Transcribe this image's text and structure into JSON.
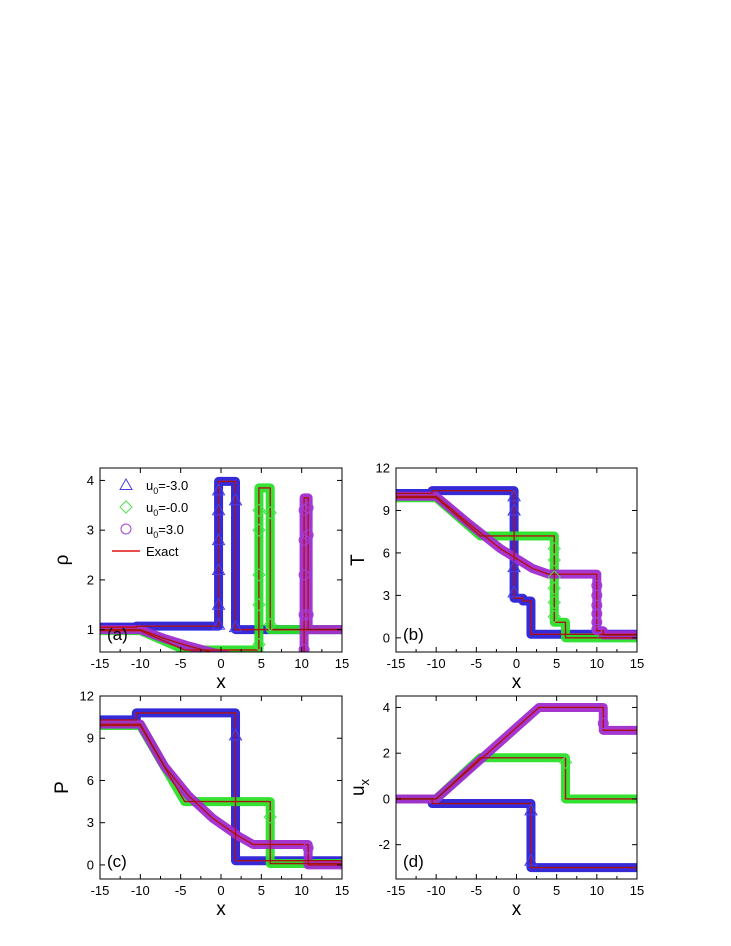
{
  "colors": {
    "u0_neg3": "#2a1fd6",
    "u0_zero": "#28e028",
    "u0_pos3": "#a12bd0",
    "exact": "#e01010",
    "marker_neg3": "#4a3fe0",
    "marker_zero": "#4fe04f",
    "marker_pos3": "#a040d8"
  },
  "legend": {
    "entries": [
      {
        "key": "u0_neg3",
        "label_main": "u",
        "label_sub": "0",
        "label_rest": "=-3.0",
        "marker": "triangle"
      },
      {
        "key": "u0_zero",
        "label_main": "u",
        "label_sub": "0",
        "label_rest": "=-0.0",
        "marker": "diamond"
      },
      {
        "key": "u0_pos3",
        "label_main": "u",
        "label_sub": "0",
        "label_rest": "=3.0",
        "marker": "circle"
      },
      {
        "key": "exact",
        "label_main": "Exact",
        "label_sub": "",
        "label_rest": "",
        "marker": "line"
      }
    ]
  },
  "chart_data": [
    {
      "type": "line",
      "panel_label": "(a)",
      "xlabel": "x",
      "ylabel": "ρ",
      "ylabel_sub": "",
      "xlim": [
        -15,
        15
      ],
      "ylim": [
        0.55,
        4.25
      ],
      "xticks": [
        -15,
        -10,
        -5,
        0,
        5,
        10,
        15
      ],
      "yticks": [
        1,
        2,
        3,
        4
      ],
      "show_legend": true,
      "series": [
        {
          "key": "u0_neg3",
          "x": [
            -15,
            -10.5,
            -10.5,
            -0.3,
            -0.3,
            1.8,
            1.8,
            15
          ],
          "y": [
            1.05,
            1.05,
            1.07,
            1.07,
            3.98,
            3.98,
            1.0,
            1.0
          ]
        },
        {
          "key": "u0_zero",
          "x": [
            -15,
            -10,
            -4.5,
            0,
            4.7,
            4.7,
            6.1,
            6.1,
            15
          ],
          "y": [
            0.98,
            0.98,
            0.59,
            0.59,
            0.59,
            3.85,
            3.85,
            1.0,
            1.0
          ]
        },
        {
          "key": "u0_pos3",
          "x": [
            -15,
            -10,
            -7,
            -4,
            -1,
            2,
            4,
            8.5,
            10.3,
            10.3,
            10.8,
            10.8,
            15
          ],
          "y": [
            1.0,
            1.0,
            0.82,
            0.67,
            0.54,
            0.44,
            0.38,
            0.32,
            0.32,
            3.65,
            3.65,
            1.0,
            1.0
          ]
        }
      ],
      "jump_markers": [
        {
          "key": "u0_neg3",
          "x": -0.3,
          "y": [
            1.1,
            1.5,
            2.2,
            2.8,
            3.4,
            3.8
          ]
        },
        {
          "key": "u0_neg3",
          "x": 1.8,
          "y": [
            1.05,
            3.6
          ]
        },
        {
          "key": "u0_zero",
          "x": 4.7,
          "y": [
            0.7,
            1.5,
            2.1,
            3.0,
            3.4
          ]
        },
        {
          "key": "u0_zero",
          "x": 6.1,
          "y": [
            1.1,
            3.35
          ]
        },
        {
          "key": "u0_pos3",
          "x": 10.3,
          "y": [
            0.35,
            0.6,
            1.3,
            2.1,
            2.8,
            3.4
          ]
        },
        {
          "key": "u0_pos3",
          "x": 10.8,
          "y": [
            1.3,
            2.9,
            3.45
          ]
        }
      ]
    },
    {
      "type": "line",
      "panel_label": "(b)",
      "xlabel": "x",
      "ylabel": "T",
      "ylabel_sub": "",
      "xlim": [
        -15,
        15
      ],
      "ylim": [
        -1,
        12
      ],
      "xticks": [
        -15,
        -10,
        -5,
        0,
        5,
        10,
        15
      ],
      "yticks": [
        0,
        3,
        6,
        9,
        12
      ],
      "show_legend": false,
      "series": [
        {
          "key": "u0_neg3",
          "x": [
            -15,
            -10.5,
            -10.5,
            -0.3,
            -0.3,
            0.8,
            0.8,
            1.8,
            1.8,
            15
          ],
          "y": [
            10.2,
            10.2,
            10.4,
            10.4,
            2.8,
            2.8,
            2.6,
            2.6,
            0.25,
            0.25
          ]
        },
        {
          "key": "u0_zero",
          "x": [
            -15,
            -10,
            -4.5,
            4.7,
            4.7,
            6.1,
            6.1,
            15
          ],
          "y": [
            9.9,
            9.9,
            7.2,
            7.2,
            1.1,
            1.1,
            0.0,
            0.0
          ]
        },
        {
          "key": "u0_pos3",
          "x": [
            -15,
            -10,
            -6,
            -2,
            2,
            4,
            10.0,
            10.0,
            10.8,
            10.8,
            15
          ],
          "y": [
            10.0,
            10.0,
            8.1,
            6.3,
            4.9,
            4.5,
            4.5,
            0.5,
            0.5,
            0.2,
            0.2
          ]
        }
      ],
      "jump_markers": [
        {
          "key": "u0_neg3",
          "x": -0.3,
          "y": [
            3.2,
            5.0,
            9.0,
            10.0
          ]
        },
        {
          "key": "u0_zero",
          "x": 4.7,
          "y": [
            1.5,
            2.5,
            3.5,
            4.3,
            5.5,
            6.3
          ]
        },
        {
          "key": "u0_pos3",
          "x": 10.0,
          "y": [
            0.6,
            1.1,
            1.7,
            2.3,
            3.0,
            3.7
          ]
        }
      ]
    },
    {
      "type": "line",
      "panel_label": "(c)",
      "xlabel": "x",
      "ylabel": "P",
      "ylabel_sub": "",
      "xlim": [
        -15,
        15
      ],
      "ylim": [
        -1,
        12
      ],
      "xticks": [
        -15,
        -10,
        -5,
        0,
        5,
        10,
        15
      ],
      "yticks": [
        0,
        3,
        6,
        9,
        12
      ],
      "show_legend": false,
      "series": [
        {
          "key": "u0_neg3",
          "x": [
            -15,
            -10.5,
            -10.5,
            1.8,
            1.8,
            15
          ],
          "y": [
            10.3,
            10.3,
            10.8,
            10.8,
            0.3,
            0.3
          ]
        },
        {
          "key": "u0_zero",
          "x": [
            -15,
            -10,
            -4.5,
            6.1,
            6.1,
            15
          ],
          "y": [
            9.9,
            9.9,
            4.5,
            4.5,
            0.1,
            0.1
          ]
        },
        {
          "key": "u0_pos3",
          "x": [
            -15,
            -10,
            -7,
            -4,
            -1,
            2,
            4,
            10.8,
            10.8,
            15
          ],
          "y": [
            10.0,
            10.0,
            7.0,
            4.9,
            3.3,
            2.1,
            1.45,
            1.45,
            0.0,
            0.0
          ]
        }
      ],
      "jump_markers": [
        {
          "key": "u0_neg3",
          "x": 1.8,
          "y": [
            9.2
          ]
        },
        {
          "key": "u0_zero",
          "x": 6.1,
          "y": [
            3.4
          ]
        },
        {
          "key": "u0_pos3",
          "x": 10.8,
          "y": [
            1.2
          ]
        }
      ]
    },
    {
      "type": "line",
      "panel_label": "(d)",
      "xlabel": "x",
      "ylabel": "u",
      "ylabel_sub": "x",
      "xlim": [
        -15,
        15
      ],
      "ylim": [
        -3.5,
        4.5
      ],
      "xticks": [
        -15,
        -10,
        -5,
        0,
        5,
        10,
        15
      ],
      "yticks": [
        -2,
        0,
        2,
        4
      ],
      "show_legend": false,
      "series": [
        {
          "key": "u0_neg3",
          "x": [
            -15,
            -10.5,
            -10.5,
            1.8,
            1.8,
            15
          ],
          "y": [
            0.0,
            0.0,
            -0.2,
            -0.2,
            -3.0,
            -3.0
          ]
        },
        {
          "key": "u0_zero",
          "x": [
            -15,
            -10,
            -4.5,
            6.1,
            6.1,
            15
          ],
          "y": [
            0.0,
            0.0,
            1.8,
            1.8,
            0.0,
            0.0
          ]
        },
        {
          "key": "u0_pos3",
          "x": [
            -15,
            -10,
            2.8,
            10.8,
            10.8,
            15
          ],
          "y": [
            0.0,
            0.0,
            4.0,
            4.0,
            3.0,
            3.0
          ]
        }
      ],
      "jump_markers": [
        {
          "key": "u0_neg3",
          "x": 1.8,
          "y": [
            -0.5,
            -2.7
          ]
        },
        {
          "key": "u0_zero",
          "x": 6.1,
          "y": [
            1.6
          ]
        },
        {
          "key": "u0_pos3",
          "x": 10.8,
          "y": [
            3.3
          ]
        }
      ]
    }
  ]
}
